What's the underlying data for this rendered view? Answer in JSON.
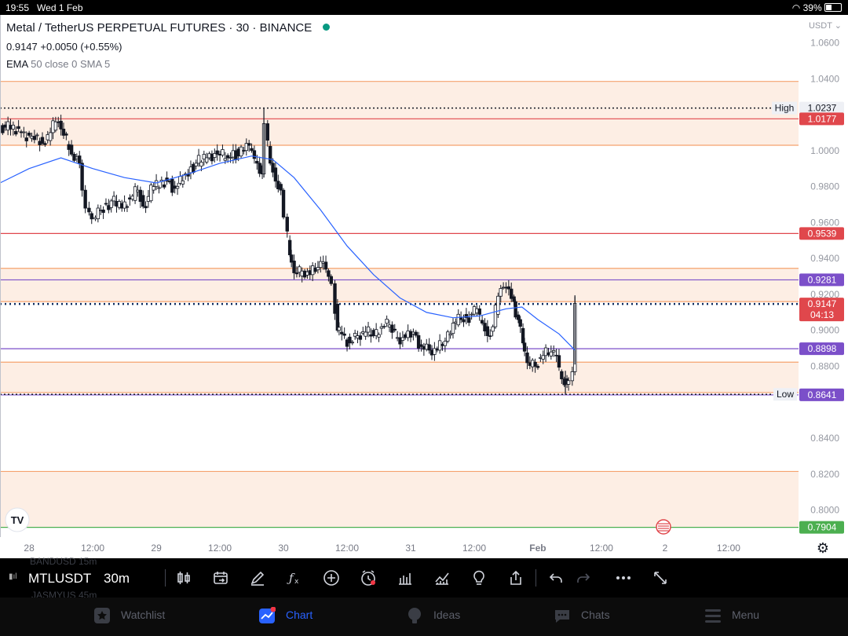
{
  "status_bar": {
    "time": "19:55",
    "date": "Wed 1 Feb",
    "battery": "39%"
  },
  "legend": {
    "title": "Metal / TetherUS PERPETUAL FUTURES · 30 · BINANCE",
    "price": "0.9147",
    "change": "+0.0050 (+0.55%)",
    "indicator_name": "EMA",
    "indicator_params": "50 close 0 SMA 5"
  },
  "chart_data": {
    "type": "candlestick",
    "symbol": "MTLUSDT",
    "timeframe": "30m",
    "currency_selector": "USDT",
    "y_ticks": [
      "1.0600",
      "1.0400",
      "1.0237",
      "1.0177",
      "1.0000",
      "0.9800",
      "0.9600",
      "0.9539",
      "0.9400",
      "0.9281",
      "0.9200",
      "0.9147",
      "0.9000",
      "0.8898",
      "0.8800",
      "0.8644",
      "0.8641",
      "0.8400",
      "0.8200",
      "0.8000",
      "0.7904"
    ],
    "y_tick_values": [
      1.06,
      1.04,
      1.0237,
      1.0177,
      1.0,
      0.98,
      0.96,
      0.9539,
      0.94,
      0.9281,
      0.92,
      0.9147,
      0.9,
      0.8898,
      0.88,
      0.8644,
      0.8641,
      0.84,
      0.82,
      0.8,
      0.7904
    ],
    "ylim": [
      0.785,
      1.0755
    ],
    "x_ticks": [
      "28",
      "12:00",
      "29",
      "12:00",
      "30",
      "12:00",
      "31",
      "12:00",
      "Feb",
      "12:00",
      "2",
      "12:00"
    ],
    "x_tick_hours": [
      0,
      12,
      24,
      36,
      48,
      60,
      72,
      84,
      96,
      108,
      120,
      132
    ],
    "xlim_hours": [
      -5.5,
      145.2
    ],
    "grid": false,
    "zones": [
      {
        "from": 1.0385,
        "to": 1.003
      },
      {
        "from": 0.9345,
        "to": 0.916
      },
      {
        "from": 0.8823,
        "to": 0.8654
      },
      {
        "from": 0.8215,
        "to": 0.7904
      }
    ],
    "horizontal_lines": [
      {
        "value": 1.0385,
        "color": "#f5a26e"
      },
      {
        "value": 1.0177,
        "color": "#e0474c",
        "label": "1.0177"
      },
      {
        "value": 1.003,
        "color": "#f5a26e"
      },
      {
        "value": 0.9539,
        "color": "#e0474c",
        "label": "0.9539"
      },
      {
        "value": 0.9345,
        "color": "#f5a26e"
      },
      {
        "value": 0.9281,
        "color": "#7b4fc9",
        "label": "0.9281"
      },
      {
        "value": 0.916,
        "color": "#f5a26e"
      },
      {
        "value": 0.8898,
        "color": "#7b4fc9",
        "label": "0.8898"
      },
      {
        "value": 0.8823,
        "color": "#f5a26e"
      },
      {
        "value": 0.8654,
        "color": "#f5a26e"
      },
      {
        "value": 0.8641,
        "color": "#7b4fc9",
        "label": "0.8641"
      },
      {
        "value": 0.8215,
        "color": "#f5a26e"
      },
      {
        "value": 0.7904,
        "color": "#4caf50",
        "label": "0.7904"
      }
    ],
    "high": {
      "label": "High",
      "value": "1.0237"
    },
    "low": {
      "label": "Low",
      "value": "0.8644"
    },
    "last_price": {
      "value": "0.9147",
      "countdown": "04:13"
    },
    "closes": [
      {
        "h": -5,
        "p": 1.012
      },
      {
        "h": -3,
        "p": 1.01
      },
      {
        "h": -1,
        "p": 1.008
      },
      {
        "h": 1,
        "p": 1.004
      },
      {
        "h": 3,
        "p": 1.01
      },
      {
        "h": 4.5,
        "p": 1.016
      },
      {
        "h": 5.5,
        "p": 1.012
      },
      {
        "h": 6.5,
        "p": 0.998
      },
      {
        "h": 8.5,
        "p": 0.993
      },
      {
        "h": 10,
        "p": 0.978
      },
      {
        "h": 10.6,
        "p": 0.968
      },
      {
        "h": 11.3,
        "p": 0.962
      },
      {
        "h": 12.5,
        "p": 0.967
      },
      {
        "h": 14,
        "p": 0.972
      },
      {
        "h": 16,
        "p": 0.968
      },
      {
        "h": 18,
        "p": 0.973
      },
      {
        "h": 19.5,
        "p": 0.978
      },
      {
        "h": 21,
        "p": 0.969
      },
      {
        "h": 22,
        "p": 0.98
      },
      {
        "h": 24,
        "p": 0.983
      },
      {
        "h": 26.5,
        "p": 0.979
      },
      {
        "h": 28,
        "p": 0.987
      },
      {
        "h": 30,
        "p": 0.993
      },
      {
        "h": 32,
        "p": 0.996
      },
      {
        "h": 34,
        "p": 0.998
      },
      {
        "h": 36,
        "p": 0.996
      },
      {
        "h": 38,
        "p": 1.0
      },
      {
        "h": 39,
        "p": 0.997
      },
      {
        "h": 40,
        "p": 1.004
      },
      {
        "h": 41.5,
        "p": 1.0
      },
      {
        "h": 42.5,
        "p": 0.993
      },
      {
        "h": 43.5,
        "p": 0.987
      },
      {
        "h": 44.3,
        "p": 1.015
      },
      {
        "h": 45,
        "p": 0.993
      },
      {
        "h": 46,
        "p": 0.983
      },
      {
        "h": 47,
        "p": 0.978
      },
      {
        "h": 48,
        "p": 0.963
      },
      {
        "h": 48.7,
        "p": 0.942
      },
      {
        "h": 49.5,
        "p": 0.932
      },
      {
        "h": 50.5,
        "p": 0.933
      },
      {
        "h": 52,
        "p": 0.931
      },
      {
        "h": 53.5,
        "p": 0.935
      },
      {
        "h": 55,
        "p": 0.938
      },
      {
        "h": 56,
        "p": 0.93
      },
      {
        "h": 57,
        "p": 0.926
      },
      {
        "h": 57.7,
        "p": 0.9
      },
      {
        "h": 58.5,
        "p": 0.898
      },
      {
        "h": 59.5,
        "p": 0.893
      },
      {
        "h": 61,
        "p": 0.897
      },
      {
        "h": 62.5,
        "p": 0.899
      },
      {
        "h": 64,
        "p": 0.897
      },
      {
        "h": 65.5,
        "p": 0.902
      },
      {
        "h": 67,
        "p": 0.903
      },
      {
        "h": 68.5,
        "p": 0.896
      },
      {
        "h": 70,
        "p": 0.896
      },
      {
        "h": 71.5,
        "p": 0.899
      },
      {
        "h": 73,
        "p": 0.891
      },
      {
        "h": 74.5,
        "p": 0.889
      },
      {
        "h": 76,
        "p": 0.889
      },
      {
        "h": 77.5,
        "p": 0.894
      },
      {
        "h": 79,
        "p": 0.904
      },
      {
        "h": 80.5,
        "p": 0.906
      },
      {
        "h": 82,
        "p": 0.907
      },
      {
        "h": 83,
        "p": 0.909
      },
      {
        "h": 84,
        "p": 0.912
      },
      {
        "h": 85,
        "p": 0.904
      },
      {
        "h": 86,
        "p": 0.897
      },
      {
        "h": 87,
        "p": 0.902
      },
      {
        "h": 88,
        "p": 0.919
      },
      {
        "h": 89,
        "p": 0.924
      },
      {
        "h": 90,
        "p": 0.923
      },
      {
        "h": 91,
        "p": 0.916
      },
      {
        "h": 91.8,
        "p": 0.906
      },
      {
        "h": 92.7,
        "p": 0.893
      },
      {
        "h": 93.5,
        "p": 0.882
      },
      {
        "h": 94.5,
        "p": 0.88
      },
      {
        "h": 96,
        "p": 0.886
      },
      {
        "h": 97.5,
        "p": 0.888
      },
      {
        "h": 99,
        "p": 0.886
      },
      {
        "h": 100,
        "p": 0.873
      },
      {
        "h": 101,
        "p": 0.87
      },
      {
        "h": 101.8,
        "p": 0.872
      },
      {
        "h": 102.5,
        "p": 0.877
      },
      {
        "h": 103,
        "p": 0.915
      }
    ],
    "ema": [
      {
        "h": -5.5,
        "p": 0.982
      },
      {
        "h": 0,
        "p": 0.99
      },
      {
        "h": 6,
        "p": 0.996
      },
      {
        "h": 12,
        "p": 0.99
      },
      {
        "h": 18,
        "p": 0.985
      },
      {
        "h": 24,
        "p": 0.982
      },
      {
        "h": 30,
        "p": 0.987
      },
      {
        "h": 36,
        "p": 0.993
      },
      {
        "h": 42,
        "p": 0.997
      },
      {
        "h": 46,
        "p": 0.995
      },
      {
        "h": 50,
        "p": 0.985
      },
      {
        "h": 55,
        "p": 0.967
      },
      {
        "h": 60,
        "p": 0.947
      },
      {
        "h": 65,
        "p": 0.931
      },
      {
        "h": 70,
        "p": 0.918
      },
      {
        "h": 75,
        "p": 0.91
      },
      {
        "h": 80,
        "p": 0.907
      },
      {
        "h": 85,
        "p": 0.908
      },
      {
        "h": 90,
        "p": 0.912
      },
      {
        "h": 93,
        "p": 0.913
      },
      {
        "h": 96,
        "p": 0.906
      },
      {
        "h": 100,
        "p": 0.898
      },
      {
        "h": 103,
        "p": 0.889
      }
    ]
  },
  "toolbar": {
    "symbol": "MTLUSDT",
    "timeframe": "30m",
    "ghost_above": "BANDUSD   15m",
    "ghost_below": "JASMYUS   45m"
  },
  "tabs": [
    {
      "label": "Watchlist",
      "icon": "star-icon"
    },
    {
      "label": "Chart",
      "icon": "chart-icon"
    },
    {
      "label": "Ideas",
      "icon": "lightbulb-icon"
    },
    {
      "label": "Chats",
      "icon": "chat-icon"
    },
    {
      "label": "Menu",
      "icon": "menu-icon"
    }
  ],
  "colors": {
    "up": "#131722",
    "down": "#131722",
    "ema": "#2962ff",
    "zone_fill": "#fdeee4",
    "background": "#ffffff"
  }
}
